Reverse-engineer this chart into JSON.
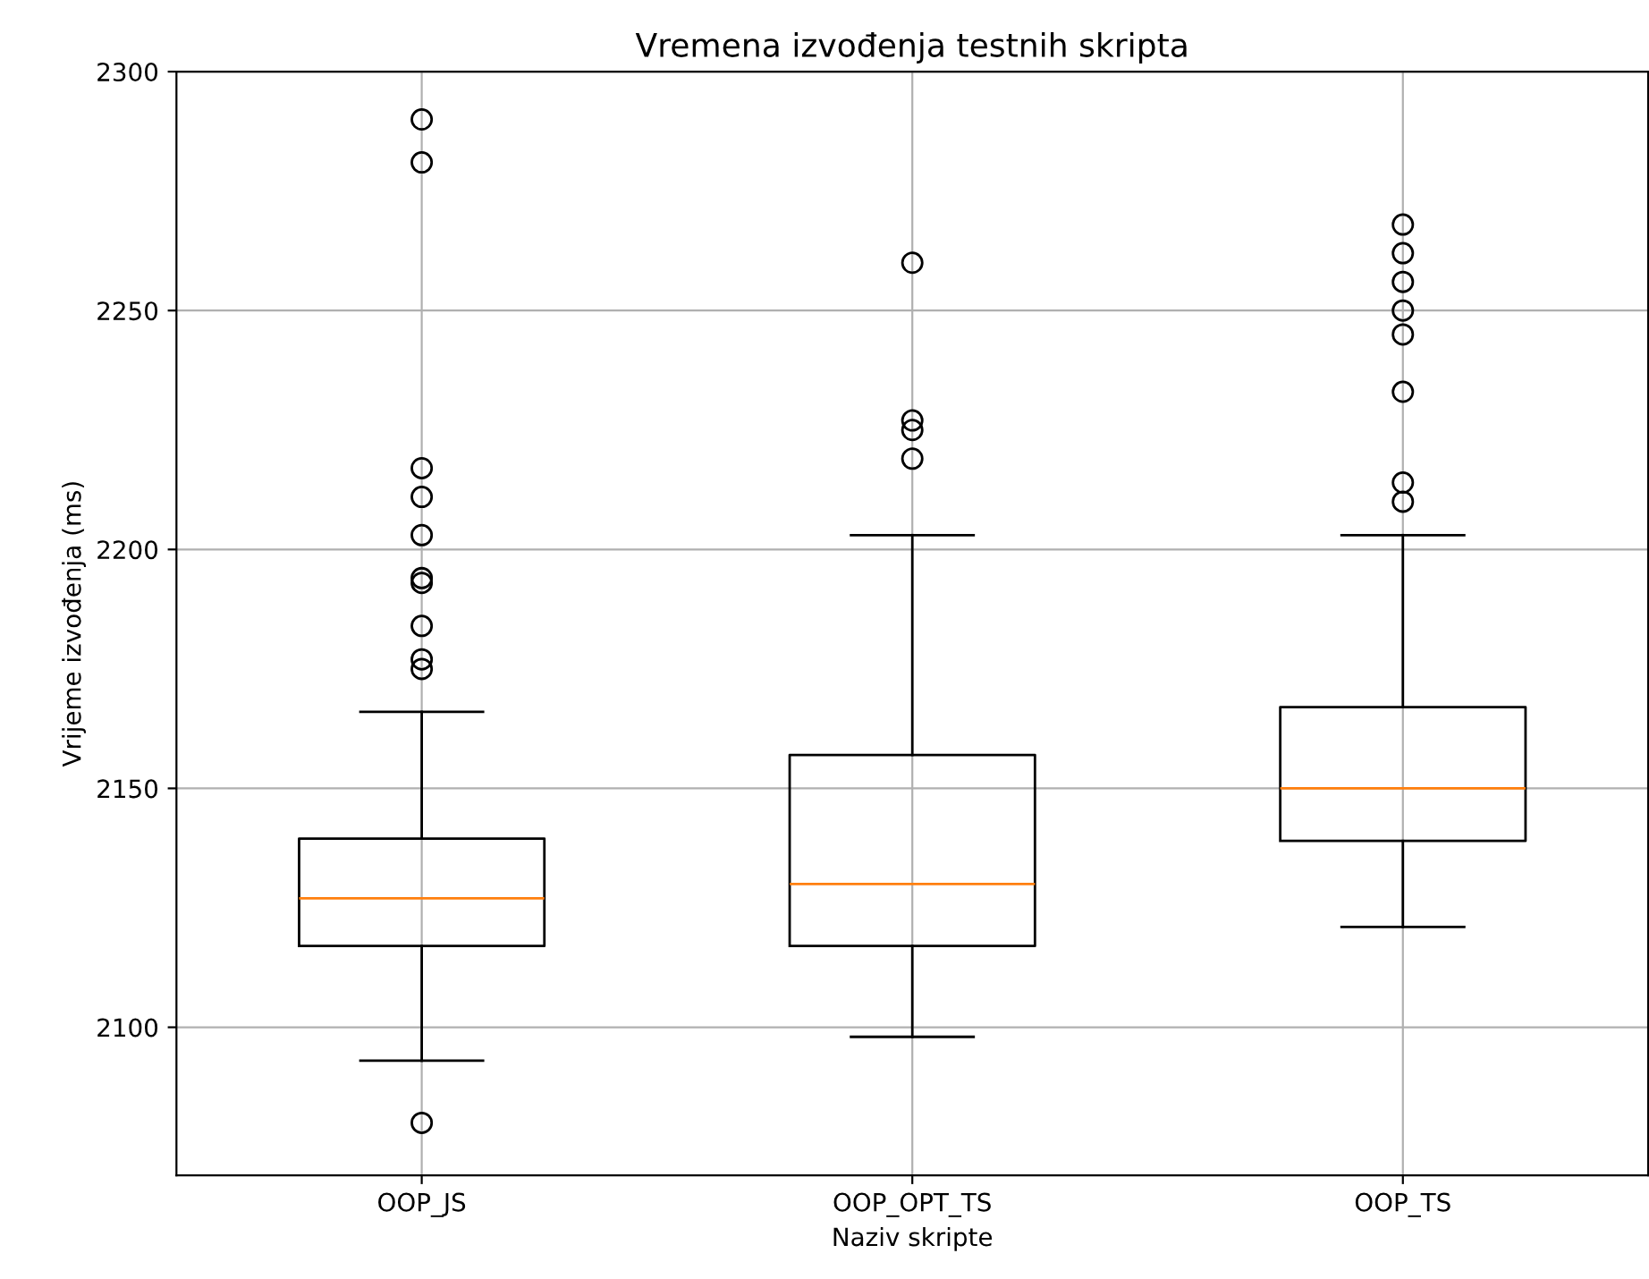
{
  "chart_data": {
    "type": "box",
    "title": "Vremena izvođenja testnih skripta",
    "xlabel": "Naziv skripte",
    "ylabel": "Vrijeme izvođenja (ms)",
    "categories": [
      "OOP_JS",
      "OOP_OPT_TS",
      "OOP_TS"
    ],
    "boxes": [
      {
        "low": 2093,
        "q1": 2117,
        "median": 2127,
        "q3": 2139.5,
        "high": 2166,
        "outliers": [
          2290,
          2281,
          2217,
          2211,
          2203,
          2194,
          2193,
          2184,
          2177,
          2175,
          2080
        ]
      },
      {
        "low": 2098,
        "q1": 2117,
        "median": 2130,
        "q3": 2157,
        "high": 2203,
        "outliers": [
          2260,
          2227,
          2225,
          2219
        ]
      },
      {
        "low": 2121,
        "q1": 2139,
        "median": 2150,
        "q3": 2167,
        "high": 2203,
        "outliers": [
          2268,
          2262,
          2256,
          2250,
          2245,
          2233,
          2214,
          2210
        ]
      }
    ],
    "color": "#000000",
    "ylim": [
      2069,
      2300
    ],
    "yticks": [
      2100,
      2150,
      2200,
      2250,
      2300
    ],
    "grid": true
  }
}
